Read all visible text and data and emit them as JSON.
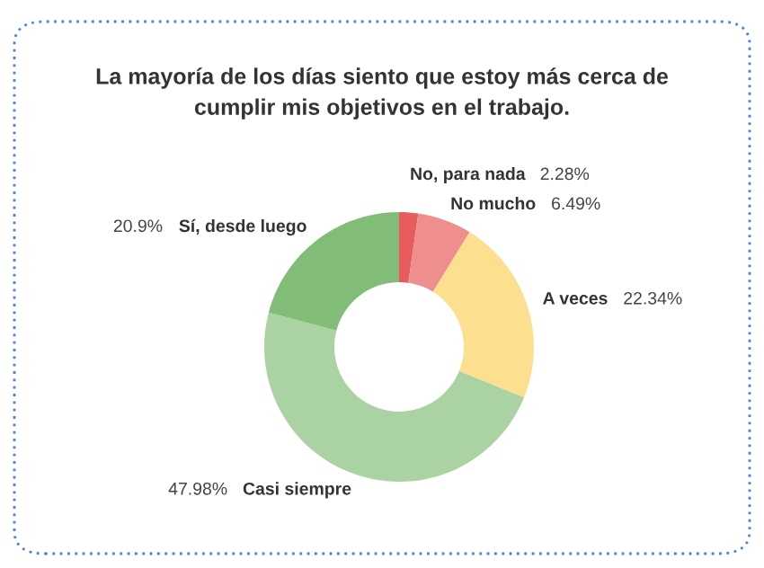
{
  "chart_data": {
    "type": "donut",
    "title": "La mayoría de los días siento que estoy más cerca de\ncumplir mis objetivos en el trabajo.",
    "categories": [
      "No, para nada",
      "No mucho",
      "A veces",
      "Casi siempre",
      "Sí, desde luego"
    ],
    "values": [
      2.28,
      6.49,
      22.34,
      47.98,
      20.9
    ],
    "value_labels": [
      "2.28%",
      "6.49%",
      "22.34%",
      "47.98%",
      "20.9%"
    ],
    "colors": [
      "#e85c5e",
      "#ef8f8d",
      "#fde08f",
      "#aad2a2",
      "#81bd76"
    ],
    "legend": false
  }
}
